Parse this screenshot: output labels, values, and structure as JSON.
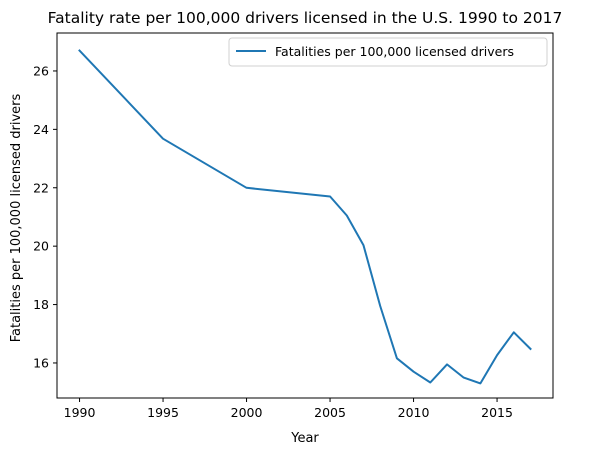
{
  "chart_data": {
    "type": "line",
    "title": "Fatality rate per 100,000 drivers licensed in the U.S. 1990 to 2017",
    "xlabel": "Year",
    "ylabel": "Fatalities per 100,000 licensed drivers",
    "xlim": [
      1988.65,
      2018.35
    ],
    "ylim": [
      14.8,
      27.3
    ],
    "xticks": [
      1990,
      1995,
      2000,
      2005,
      2010,
      2015
    ],
    "yticks": [
      16,
      18,
      20,
      22,
      24,
      26
    ],
    "grid": false,
    "legend_position": "top-right",
    "series": [
      {
        "name": "Fatalities per 100,000 licensed drivers",
        "color": "#1f77b4",
        "x": [
          1990,
          1995,
          2000,
          2005,
          2006,
          2007,
          2008,
          2009,
          2010,
          2011,
          2012,
          2013,
          2014,
          2015,
          2016,
          2017
        ],
        "y": [
          26.7,
          23.68,
          22.0,
          21.7,
          21.05,
          20.03,
          17.95,
          16.16,
          15.7,
          15.33,
          15.95,
          15.5,
          15.3,
          16.27,
          17.05,
          16.48
        ]
      }
    ]
  }
}
